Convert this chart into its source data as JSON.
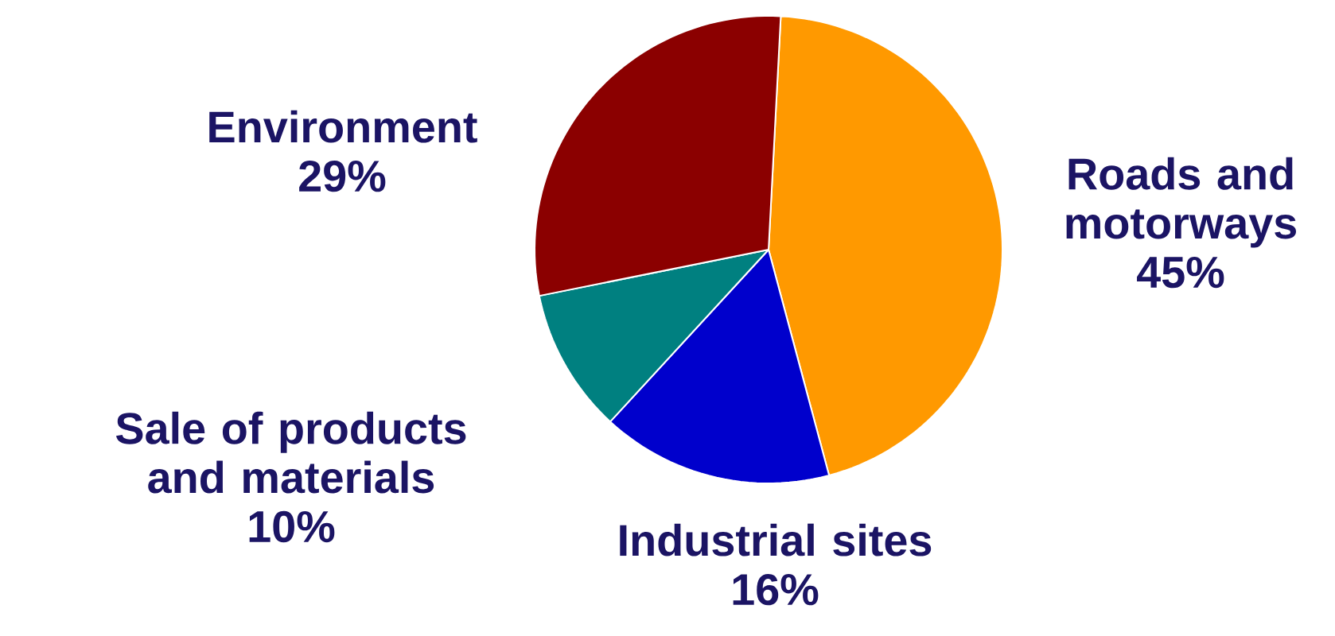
{
  "chart_data": {
    "type": "pie",
    "categories": [
      "Roads and motorways",
      "Industrial sites",
      "Sale of products and materials",
      "Environment"
    ],
    "values": [
      45,
      16,
      10,
      29
    ],
    "colors": [
      "#ff9900",
      "#0000cc",
      "#008080",
      "#8b0000"
    ],
    "value_labels": [
      "45%",
      "16%",
      "10%",
      "29%"
    ]
  }
}
